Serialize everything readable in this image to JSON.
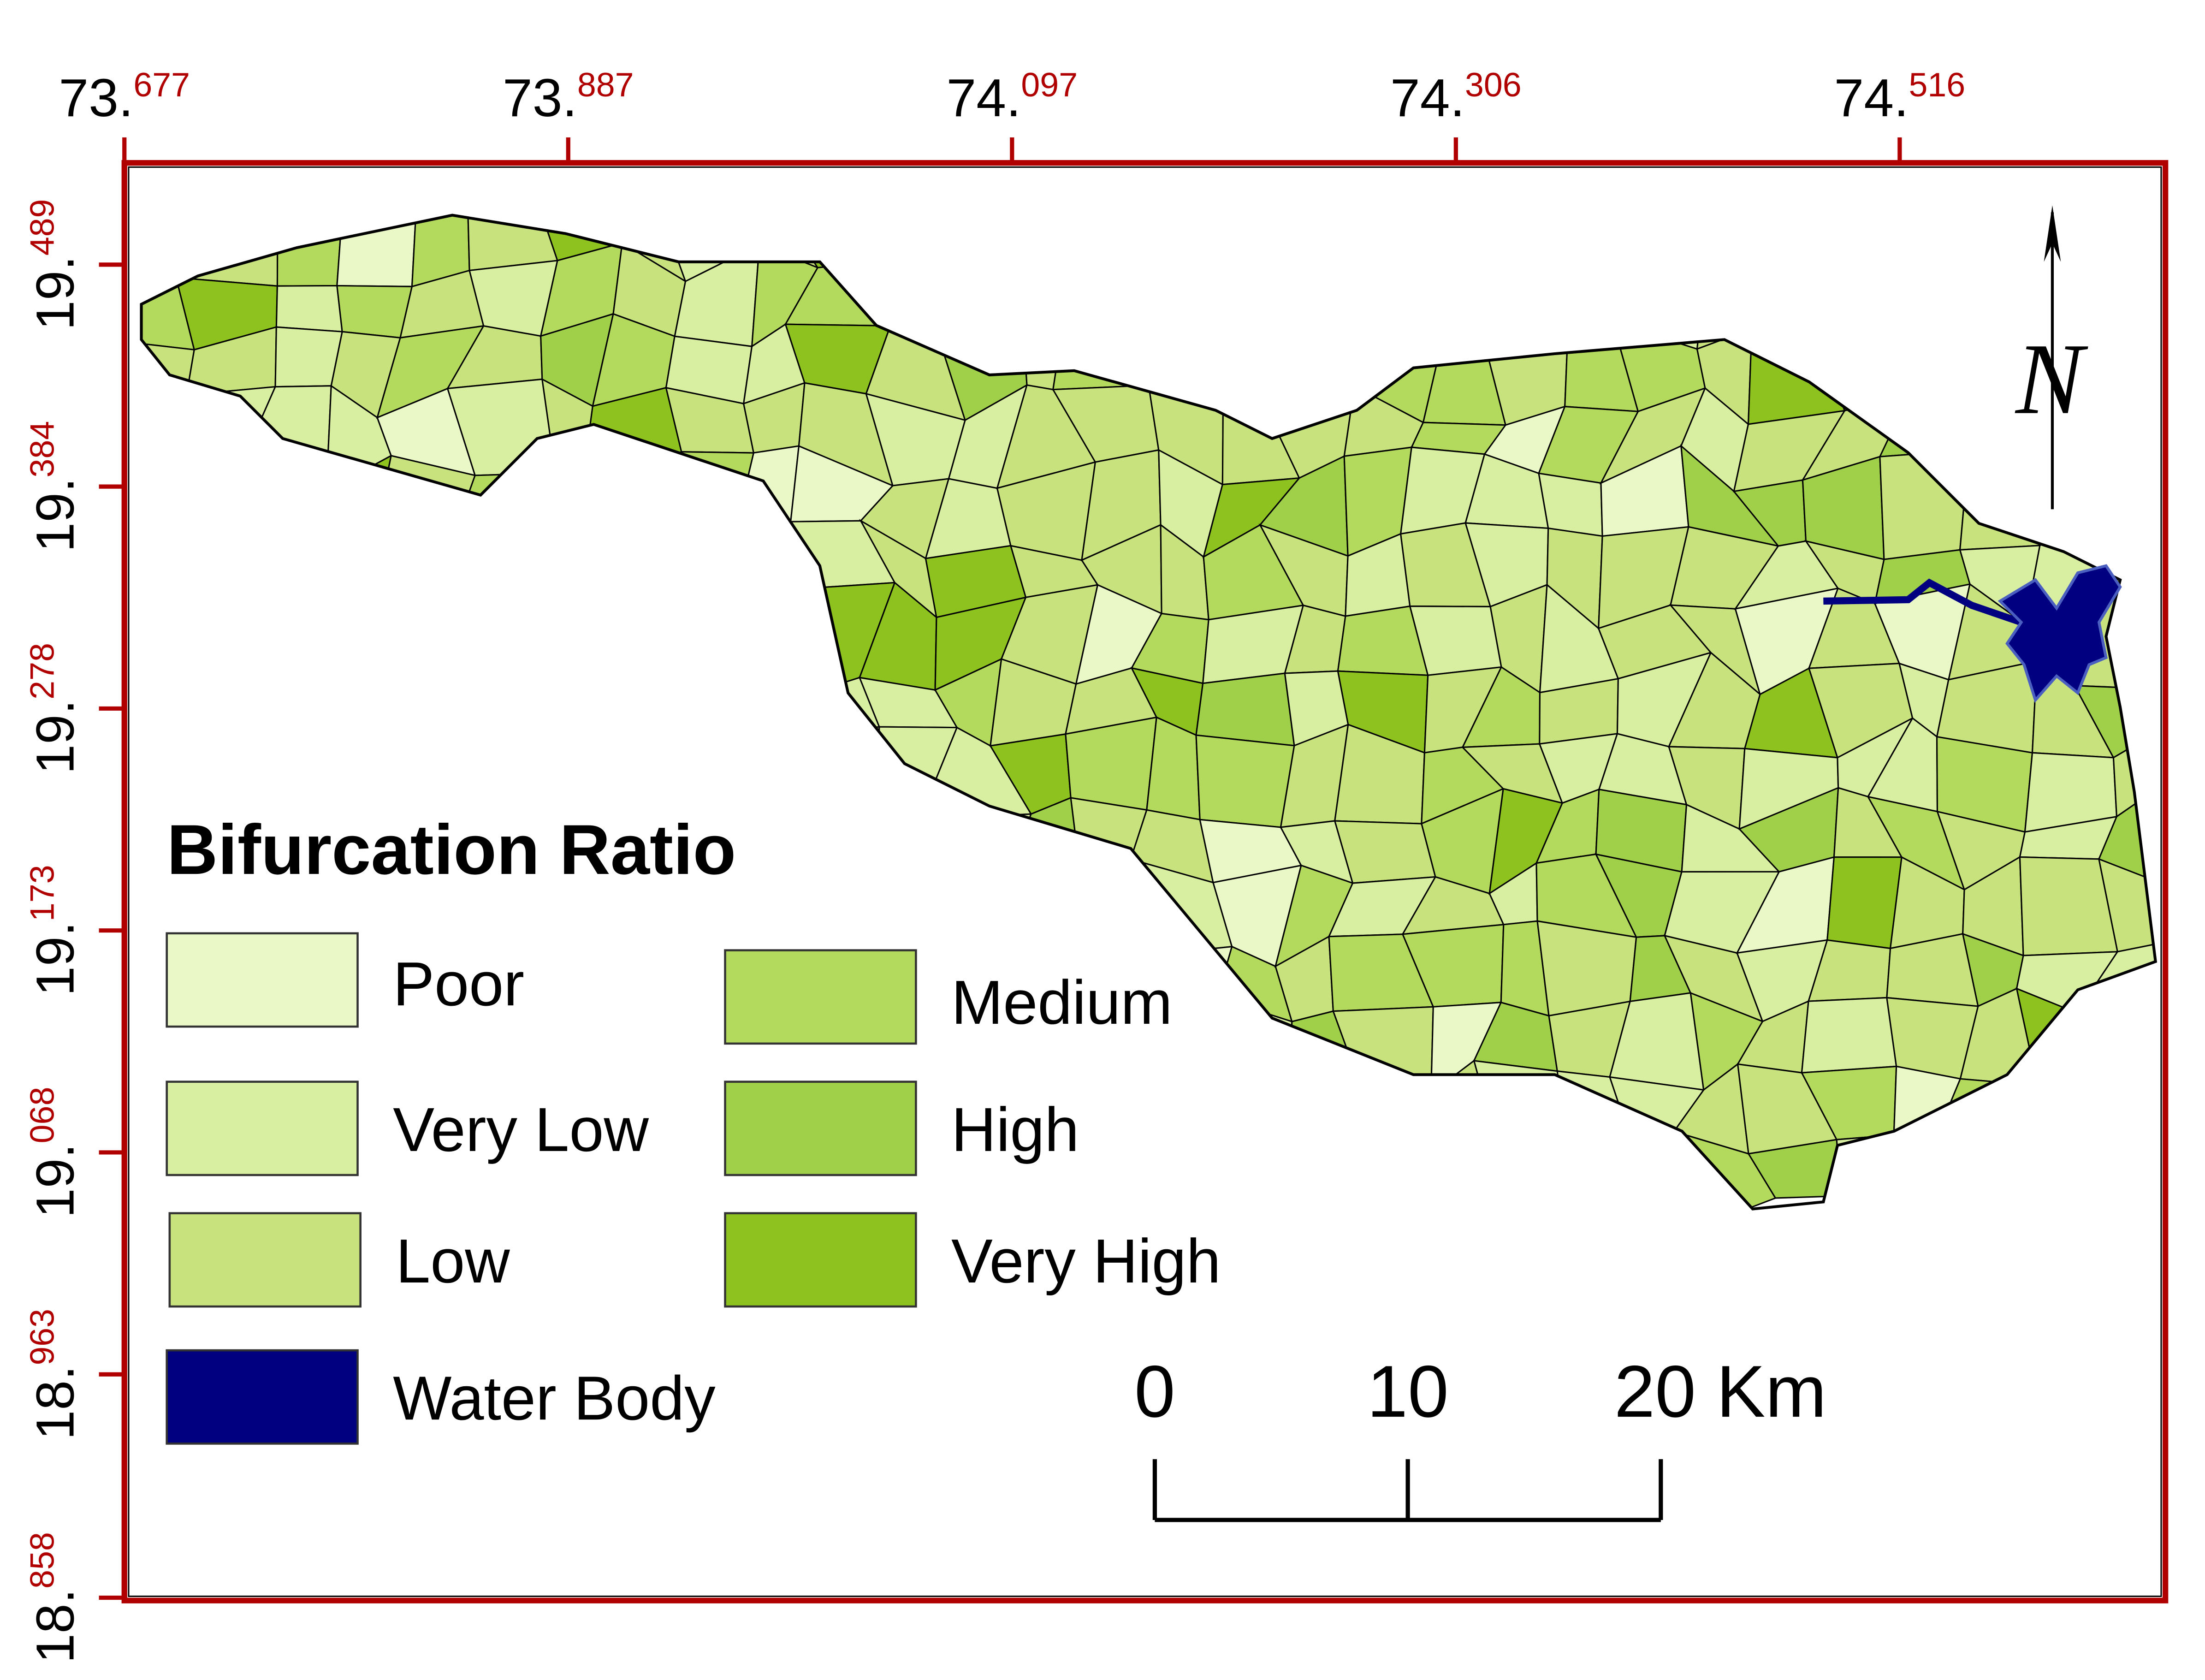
{
  "map": {
    "x_ticks": [
      {
        "whole": "73.",
        "fraction": "677"
      },
      {
        "whole": "73.",
        "fraction": "887"
      },
      {
        "whole": "74.",
        "fraction": "097"
      },
      {
        "whole": "74.",
        "fraction": "306"
      },
      {
        "whole": "74.",
        "fraction": "516"
      }
    ],
    "y_ticks": [
      {
        "whole": "19.",
        "fraction": "489"
      },
      {
        "whole": "19.",
        "fraction": "384"
      },
      {
        "whole": "19.",
        "fraction": "278"
      },
      {
        "whole": "19.",
        "fraction": "173"
      },
      {
        "whole": "19.",
        "fraction": "068"
      },
      {
        "whole": "18.",
        "fraction": "963"
      },
      {
        "whole": "18.",
        "fraction": "858"
      }
    ],
    "legend": {
      "title": "Bifurcation Ratio",
      "items": [
        {
          "label": "Poor",
          "color": "#eaf8c8"
        },
        {
          "label": "Very Low",
          "color": "#d8eea0"
        },
        {
          "label": "Low",
          "color": "#c8e37e"
        },
        {
          "label": "Water Body",
          "color": "#000080"
        },
        {
          "label": "Medium",
          "color": "#b3d95d"
        },
        {
          "label": "High",
          "color": "#a0cf4a"
        },
        {
          "label": "Very High",
          "color": "#8dc21f"
        }
      ]
    },
    "scale_bar": {
      "labels": [
        "0",
        "10",
        "20 Km"
      ]
    },
    "north_arrow": "N"
  }
}
